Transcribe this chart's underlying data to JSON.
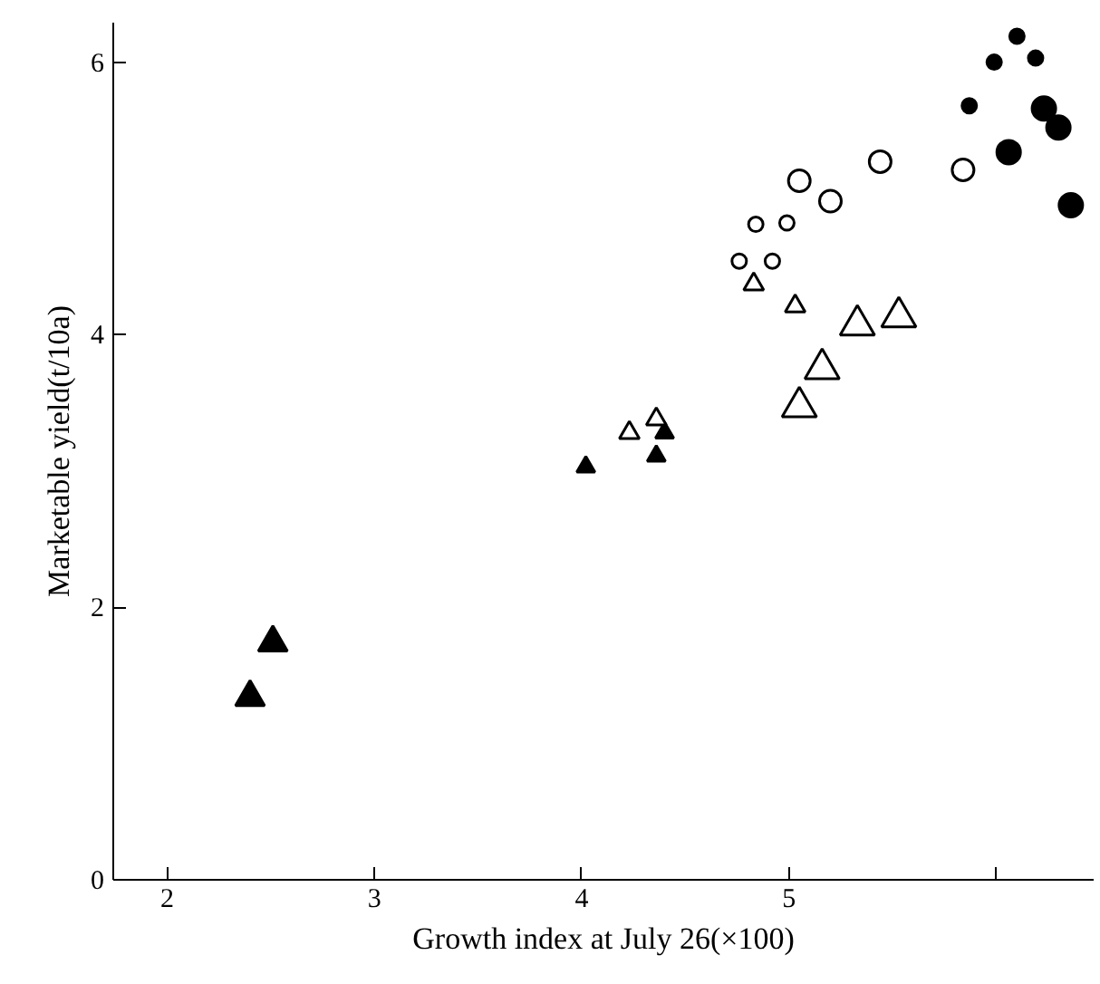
{
  "chart_data": {
    "type": "scatter",
    "xlabel": "Growth index at July 26(×100)",
    "ylabel": "Marketable yield(t/10a)",
    "xlim": [
      1.74,
      6.47
    ],
    "ylim": [
      0,
      6.29
    ],
    "xticks": [
      2,
      3,
      4,
      5,
      {
        "value": 6,
        "label": null
      }
    ],
    "yticks": [
      0,
      2,
      4,
      6
    ],
    "grid": false,
    "series": [
      {
        "color": "#000000",
        "marker": "triangle",
        "x": [
          2.4,
          2.51
        ],
        "values": [
          1.34,
          1.74
        ]
      },
      {
        "color": "#000000",
        "marker": "triangle",
        "x": [
          4.02,
          4.36,
          4.4
        ],
        "values": [
          3.03,
          3.11,
          3.28
        ]
      },
      {
        "color": "#000000",
        "marker": "triangle",
        "x": [
          4.23,
          4.36,
          4.83,
          5.03
        ],
        "values": [
          3.28,
          3.38,
          4.37,
          4.21
        ]
      },
      {
        "color": "#000000",
        "marker": "triangle",
        "x": [
          5.05,
          5.16,
          5.33,
          5.53
        ],
        "values": [
          3.47,
          3.75,
          4.07,
          4.13
        ]
      },
      {
        "color": "#000000",
        "marker": "circle",
        "x": [
          4.76,
          4.92,
          4.84,
          4.99
        ],
        "values": [
          4.54,
          4.54,
          4.81,
          4.82
        ]
      },
      {
        "color": "#000000",
        "marker": "circle",
        "x": [
          5.05,
          5.2,
          5.44,
          5.84
        ],
        "values": [
          5.13,
          4.98,
          5.27,
          5.21
        ]
      },
      {
        "color": "#000000",
        "marker": "circle",
        "x": [
          5.87,
          5.99,
          6.1,
          6.19
        ],
        "values": [
          5.68,
          6.0,
          6.19,
          6.03
        ]
      },
      {
        "color": "#000000",
        "marker": "circle",
        "x": [
          6.06,
          6.23,
          6.3,
          6.36
        ],
        "values": [
          5.34,
          5.66,
          5.52,
          4.95
        ]
      }
    ]
  }
}
